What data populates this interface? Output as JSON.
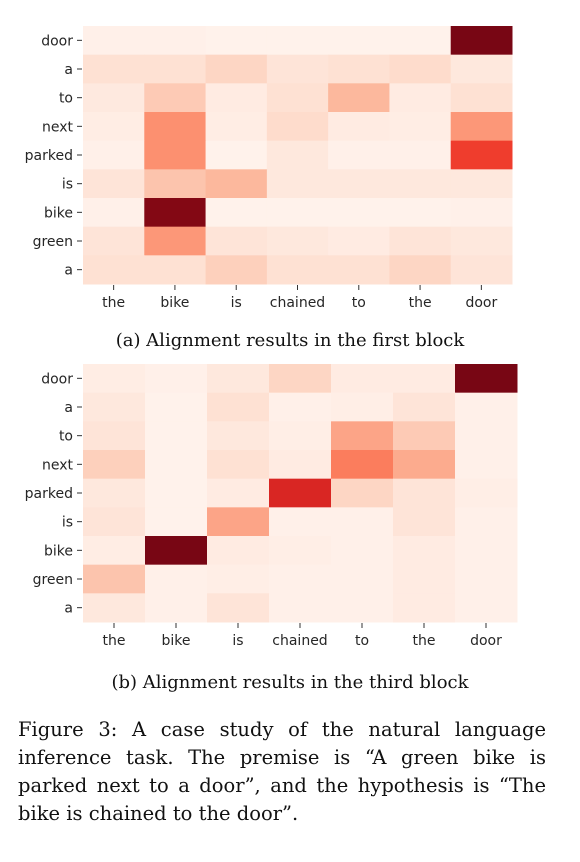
{
  "chart_data": [
    {
      "type": "heatmap",
      "caption": "(a) Alignment results in the first block",
      "x_labels": [
        "the",
        "bike",
        "is",
        "chained",
        "to",
        "the",
        "door"
      ],
      "y_labels": [
        "door",
        "a",
        "to",
        "next",
        "parked",
        "is",
        "bike",
        "green",
        "a"
      ],
      "values": [
        [
          0.03,
          0.03,
          0.02,
          0.02,
          0.02,
          0.02,
          1.0
        ],
        [
          0.12,
          0.12,
          0.16,
          0.1,
          0.12,
          0.14,
          0.08
        ],
        [
          0.07,
          0.2,
          0.06,
          0.12,
          0.26,
          0.06,
          0.12
        ],
        [
          0.05,
          0.38,
          0.05,
          0.14,
          0.06,
          0.05,
          0.36
        ],
        [
          0.03,
          0.38,
          0.02,
          0.08,
          0.03,
          0.03,
          0.62
        ],
        [
          0.1,
          0.22,
          0.26,
          0.08,
          0.08,
          0.08,
          0.08
        ],
        [
          0.03,
          0.97,
          0.02,
          0.02,
          0.02,
          0.02,
          0.03
        ],
        [
          0.1,
          0.36,
          0.1,
          0.08,
          0.06,
          0.1,
          0.08
        ],
        [
          0.12,
          0.12,
          0.18,
          0.12,
          0.12,
          0.16,
          0.1
        ]
      ]
    },
    {
      "type": "heatmap",
      "caption": "(b) Alignment results in the third block",
      "x_labels": [
        "the",
        "bike",
        "is",
        "chained",
        "to",
        "the",
        "door"
      ],
      "y_labels": [
        "door",
        "a",
        "to",
        "next",
        "parked",
        "is",
        "bike",
        "green",
        "a"
      ],
      "values": [
        [
          0.05,
          0.03,
          0.08,
          0.16,
          0.06,
          0.06,
          1.0
        ],
        [
          0.08,
          0.02,
          0.12,
          0.03,
          0.04,
          0.1,
          0.03
        ],
        [
          0.1,
          0.02,
          0.08,
          0.04,
          0.32,
          0.2,
          0.03
        ],
        [
          0.18,
          0.02,
          0.12,
          0.06,
          0.44,
          0.3,
          0.03
        ],
        [
          0.08,
          0.02,
          0.06,
          0.7,
          0.16,
          0.1,
          0.04
        ],
        [
          0.1,
          0.02,
          0.32,
          0.03,
          0.03,
          0.1,
          0.03
        ],
        [
          0.05,
          1.0,
          0.06,
          0.04,
          0.03,
          0.06,
          0.03
        ],
        [
          0.22,
          0.03,
          0.04,
          0.03,
          0.03,
          0.06,
          0.03
        ],
        [
          0.08,
          0.03,
          0.1,
          0.03,
          0.03,
          0.06,
          0.03
        ]
      ]
    }
  ],
  "figure_caption": "Figure 3: A case study of the natural language inference task. The premise is “A green bike is parked next to a door”, and the hypothesis is “The bike is chained to the door”."
}
